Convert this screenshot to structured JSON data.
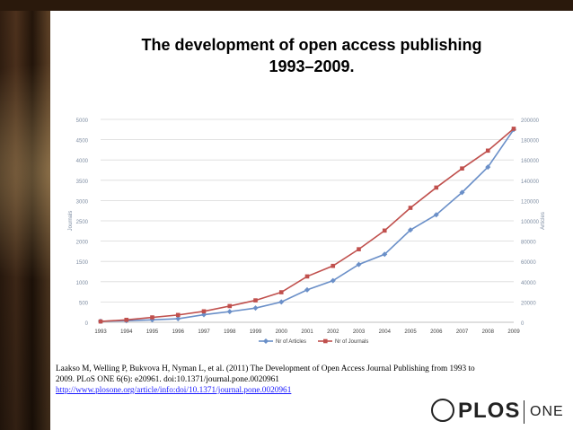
{
  "slide": {
    "title_line1": "The development of open access publishing",
    "title_line2": "1993–2009.",
    "citation_line1": "Laakso M, Welling P, Bukvova H, Nyman L, et al. (2011) The Development of Open Access Journal Publishing from 1993 to",
    "citation_line2": "2009. PLoS ONE 6(6): e20961. doi:10.1371/journal.pone.0020961",
    "citation_link": "http://www.plosone.org/article/info:doi/10.1371/journal.pone.0020961",
    "logo_word": "PLOS",
    "logo_one": "ONE"
  },
  "chart_data": {
    "type": "line",
    "title": "",
    "xlabel": "",
    "categories": [
      "1993",
      "1994",
      "1995",
      "1996",
      "1997",
      "1998",
      "1999",
      "2000",
      "2001",
      "2002",
      "2003",
      "2004",
      "2005",
      "2006",
      "2007",
      "2008",
      "2009"
    ],
    "y_left": {
      "label": "Journals",
      "lim": [
        0,
        5000
      ],
      "ticks": [
        "0",
        "500",
        "1000",
        "1500",
        "2000",
        "2500",
        "3000",
        "3500",
        "4000",
        "4500",
        "5000"
      ]
    },
    "y_right": {
      "label": "Articles",
      "lim": [
        0,
        200000
      ],
      "ticks": [
        "0",
        "20000",
        "40000",
        "60000",
        "80000",
        "100000",
        "120000",
        "140000",
        "160000",
        "180000",
        "200000"
      ]
    },
    "series": [
      {
        "name": "Nr of Articles",
        "axis": "right",
        "color": "#6a8fc8",
        "marker": "diamond",
        "values": [
          1000,
          1500,
          2400,
          3500,
          7500,
          10500,
          14000,
          20000,
          32000,
          41000,
          57000,
          67000,
          91000,
          106000,
          128000,
          153000,
          190000
        ]
      },
      {
        "name": "Nr of Journals",
        "axis": "left",
        "color": "#c0504d",
        "marker": "square",
        "values": [
          20,
          60,
          120,
          180,
          270,
          400,
          540,
          740,
          1130,
          1390,
          1800,
          2260,
          2820,
          3320,
          3790,
          4230,
          4770
        ]
      }
    ],
    "grid": true,
    "legend_position": "bottom"
  },
  "colors": {
    "axis_text": "#7f8ea3",
    "grid": "#d9d9d9"
  }
}
